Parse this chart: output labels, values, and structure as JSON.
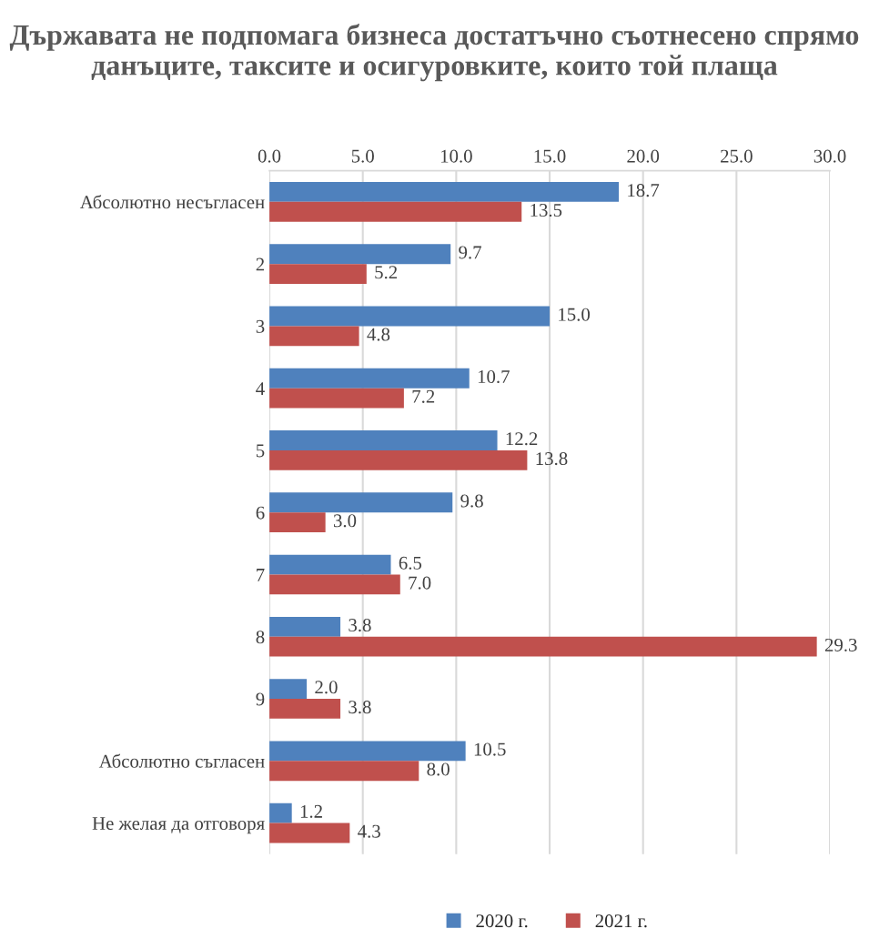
{
  "chart_data": {
    "type": "bar",
    "orientation": "horizontal",
    "title": "Държавата не подпомага бизнеса достатъчно съотнесено спрямо данъците, таксите и осигуровките, които той плаща",
    "categories": [
      "Абсолютно несъгласен",
      "2",
      "3",
      "4",
      "5",
      "6",
      "7",
      "8",
      "9",
      "Абсолютно съгласен",
      "Не желая да отговоря"
    ],
    "series": [
      {
        "name": "2020 г.",
        "color": "#4f81bd",
        "values": [
          18.7,
          9.7,
          15.0,
          10.7,
          12.2,
          9.8,
          6.5,
          3.8,
          2.0,
          10.5,
          1.2
        ],
        "value_labels": [
          "18.7",
          "9.7",
          "15.0",
          "10.7",
          "12.2",
          "9.8",
          "6.5",
          "3.8",
          "2.0",
          "10.5",
          "1.2"
        ]
      },
      {
        "name": "2021 г.",
        "color": "#c0504d",
        "values": [
          13.5,
          5.2,
          4.8,
          7.2,
          13.8,
          3.0,
          7.0,
          29.3,
          3.8,
          8.0,
          4.3
        ],
        "value_labels": [
          "13.5",
          "5.2",
          "4.8",
          "7.2",
          "13.8",
          "3.0",
          "7.0",
          "29.3",
          "3.8",
          "8.0",
          "4.3"
        ]
      }
    ],
    "xlim": [
      0,
      30
    ],
    "xticks": [
      {
        "value": 0,
        "label": "0.0"
      },
      {
        "value": 5,
        "label": "5.0"
      },
      {
        "value": 10,
        "label": "10.0"
      },
      {
        "value": 15,
        "label": "15.0"
      },
      {
        "value": 20,
        "label": "20.0"
      },
      {
        "value": 25,
        "label": "25.0"
      },
      {
        "value": 30,
        "label": "30.0"
      }
    ],
    "grid": "x",
    "legend": "bottom"
  }
}
